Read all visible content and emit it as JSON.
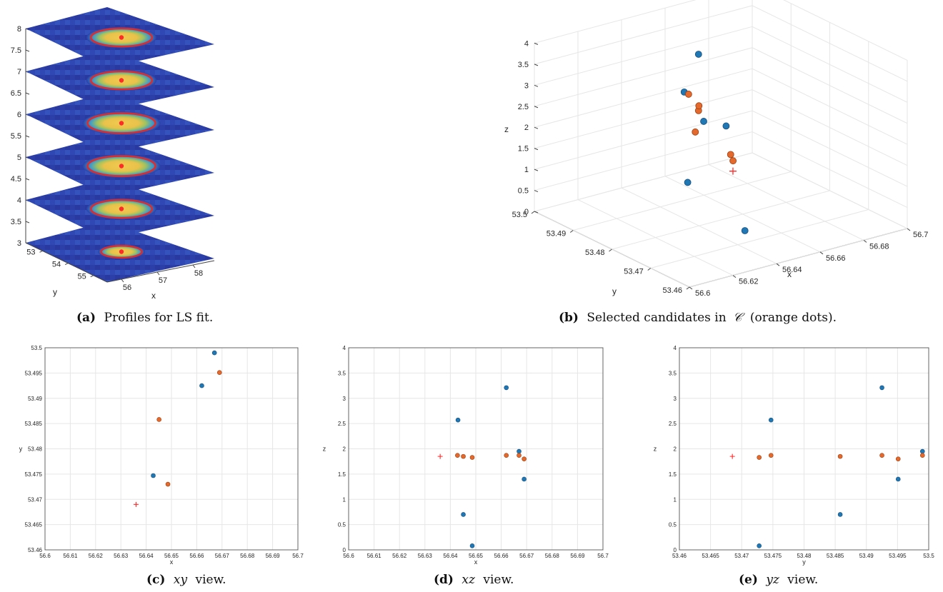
{
  "colors": {
    "blue": "#1f77b4",
    "orange": "#e3692c",
    "red_marker": "#ff2a2a",
    "grid": "#e6e6e6",
    "heat_low": "#2b3ea8",
    "heat_high": "#f5c84a",
    "ring": "#e12a2a"
  },
  "captions": {
    "a": {
      "tag": "(a)",
      "text": "Profiles for LS fit."
    },
    "b": {
      "tag": "(b)",
      "pre": "Selected candidates in",
      "symbol": "𝒞",
      "post": "(orange dots)."
    },
    "c": {
      "tag": "(c)",
      "var": "xy",
      "post": "view."
    },
    "d": {
      "tag": "(d)",
      "var": "xz",
      "post": "view."
    },
    "e": {
      "tag": "(e)",
      "var": "yz",
      "post": "view."
    }
  },
  "chart_data": [
    {
      "id": "a",
      "type": "heatmap",
      "title": "",
      "xlabel": "x",
      "ylabel": "y",
      "zlabel": "",
      "x_ticks": [
        "56",
        "57",
        "58"
      ],
      "y_ticks": [
        "53",
        "54",
        "55"
      ],
      "z_ticks": [
        "3",
        "3.5",
        "4",
        "4.5",
        "5",
        "5.5",
        "6",
        "6.5",
        "7",
        "7.5",
        "8"
      ],
      "zlim": [
        3,
        8
      ],
      "slices": [
        {
          "z": 3,
          "ring_radius": 0.3
        },
        {
          "z": 4,
          "ring_radius": 0.45
        },
        {
          "z": 5,
          "ring_radius": 0.5
        },
        {
          "z": 6,
          "ring_radius": 0.5
        },
        {
          "z": 7,
          "ring_radius": 0.45
        },
        {
          "z": 8,
          "ring_radius": 0.45
        }
      ]
    },
    {
      "id": "b",
      "type": "scatter",
      "title": "",
      "xlabel": "x",
      "ylabel": "y",
      "zlabel": "z",
      "x_ticks": [
        "56.6",
        "56.62",
        "56.64",
        "56.66",
        "56.68",
        "56.7"
      ],
      "y_ticks": [
        "53.46",
        "53.47",
        "53.48",
        "53.49",
        "53.5"
      ],
      "z_ticks": [
        "0",
        "0.5",
        "1",
        "1.5",
        "2",
        "2.5",
        "3",
        "3.5",
        "4"
      ],
      "xlim": [
        56.6,
        56.7
      ],
      "ylim": [
        53.46,
        53.5
      ],
      "zlim": [
        0,
        4
      ],
      "blue_points": [
        {
          "x": 56.667,
          "y": 53.499,
          "z": 1.95
        },
        {
          "x": 56.662,
          "y": 53.4925,
          "z": 3.21
        },
        {
          "x": 56.643,
          "y": 53.4747,
          "z": 2.57
        },
        {
          "x": 56.6451,
          "y": 53.4858,
          "z": 0.7
        },
        {
          "x": 56.6486,
          "y": 53.473,
          "z": 0.08
        },
        {
          "x": 56.669,
          "y": 53.4951,
          "z": 1.4
        }
      ],
      "orange_points": [
        {
          "x": 56.6428,
          "y": 53.4728,
          "z": 1.83
        },
        {
          "x": 56.6449,
          "y": 53.4746,
          "z": 1.87
        },
        {
          "x": 56.6486,
          "y": 53.4858,
          "z": 1.85
        },
        {
          "x": 56.662,
          "y": 53.4925,
          "z": 1.87
        },
        {
          "x": 56.6668,
          "y": 53.4951,
          "z": 1.8
        },
        {
          "x": 56.669,
          "y": 53.499,
          "z": 1.87
        }
      ],
      "red_cross": {
        "x": 56.636,
        "y": 53.469,
        "z": 1.85
      }
    },
    {
      "id": "c",
      "type": "scatter",
      "title": "",
      "xlabel": "x",
      "ylabel": "y",
      "xlim": [
        56.6,
        56.7
      ],
      "ylim": [
        53.46,
        53.5
      ],
      "x_ticks": [
        "56.6",
        "56.61",
        "56.62",
        "56.63",
        "56.64",
        "56.65",
        "56.66",
        "56.67",
        "56.68",
        "56.69",
        "56.7"
      ],
      "y_ticks": [
        "53.46",
        "53.465",
        "53.47",
        "53.475",
        "53.48",
        "53.485",
        "53.49",
        "53.495",
        "53.5"
      ],
      "blue_points": [
        {
          "x": 56.6428,
          "y": 53.4747
        },
        {
          "x": 56.662,
          "y": 53.4925
        },
        {
          "x": 56.667,
          "y": 53.499
        }
      ],
      "orange_points": [
        {
          "x": 56.6451,
          "y": 53.4858
        },
        {
          "x": 56.6486,
          "y": 53.473
        },
        {
          "x": 56.669,
          "y": 53.4951
        }
      ],
      "red_cross": {
        "x": 56.636,
        "y": 53.469
      }
    },
    {
      "id": "d",
      "type": "scatter",
      "title": "",
      "xlabel": "x",
      "ylabel": "z",
      "xlim": [
        56.6,
        56.7
      ],
      "ylim": [
        0,
        4
      ],
      "x_ticks": [
        "56.6",
        "56.61",
        "56.62",
        "56.63",
        "56.64",
        "56.65",
        "56.66",
        "56.67",
        "56.68",
        "56.69",
        "56.7"
      ],
      "y_ticks": [
        "0",
        "0.5",
        "1",
        "1.5",
        "2",
        "2.5",
        "3",
        "3.5",
        "4"
      ],
      "blue_points": [
        {
          "x": 56.643,
          "y": 2.57
        },
        {
          "x": 56.6451,
          "y": 0.7
        },
        {
          "x": 56.6486,
          "y": 0.08
        },
        {
          "x": 56.662,
          "y": 3.21
        },
        {
          "x": 56.667,
          "y": 1.95
        },
        {
          "x": 56.669,
          "y": 1.4
        }
      ],
      "orange_points": [
        {
          "x": 56.6428,
          "y": 1.87
        },
        {
          "x": 56.6451,
          "y": 1.85
        },
        {
          "x": 56.6486,
          "y": 1.83
        },
        {
          "x": 56.662,
          "y": 1.87
        },
        {
          "x": 56.667,
          "y": 1.87
        },
        {
          "x": 56.669,
          "y": 1.8
        }
      ],
      "red_cross": {
        "x": 56.636,
        "y": 1.85
      }
    },
    {
      "id": "e",
      "type": "scatter",
      "title": "",
      "xlabel": "y",
      "ylabel": "z",
      "xlim": [
        53.46,
        53.5
      ],
      "ylim": [
        0,
        4
      ],
      "x_ticks": [
        "53.46",
        "53.465",
        "53.47",
        "53.475",
        "53.48",
        "53.485",
        "53.49",
        "53.495",
        "53.5"
      ],
      "y_ticks": [
        "0",
        "0.5",
        "1",
        "1.5",
        "2",
        "2.5",
        "3",
        "3.5",
        "4"
      ],
      "blue_points": [
        {
          "x": 53.4728,
          "y": 0.08
        },
        {
          "x": 53.4747,
          "y": 2.57
        },
        {
          "x": 53.4858,
          "y": 0.7
        },
        {
          "x": 53.4925,
          "y": 3.21
        },
        {
          "x": 53.4951,
          "y": 1.4
        },
        {
          "x": 53.499,
          "y": 1.95
        }
      ],
      "orange_points": [
        {
          "x": 53.4728,
          "y": 1.83
        },
        {
          "x": 53.4747,
          "y": 1.87
        },
        {
          "x": 53.4858,
          "y": 1.85
        },
        {
          "x": 53.4925,
          "y": 1.87
        },
        {
          "x": 53.4951,
          "y": 1.8
        },
        {
          "x": 53.499,
          "y": 1.87
        }
      ],
      "red_cross": {
        "x": 53.4685,
        "y": 1.85
      }
    }
  ]
}
